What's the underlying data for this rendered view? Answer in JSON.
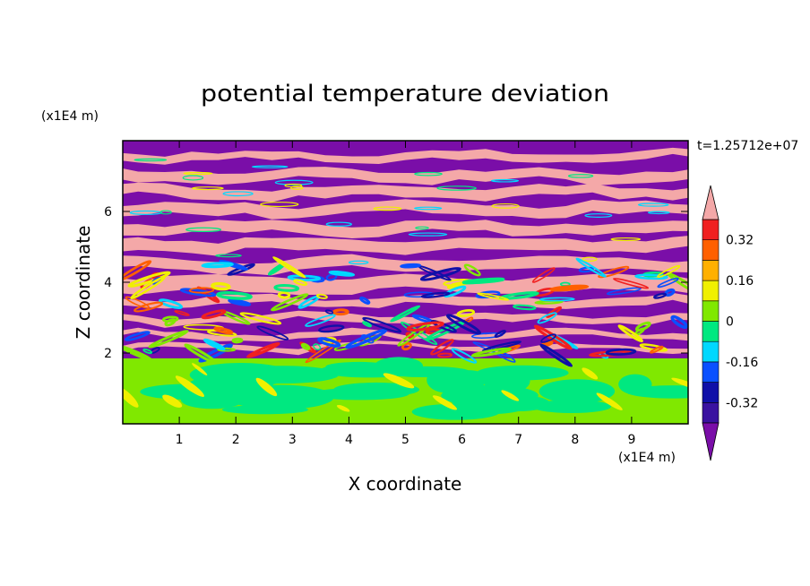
{
  "chart_data": {
    "type": "heatmap",
    "title": "potential temperature deviation",
    "time_label": "t=1.25712e+07",
    "xlabel": "X coordinate",
    "ylabel": "Z coordinate",
    "x_unit": "(x1E4 m)",
    "y_unit": "(x1E4 m)",
    "xlim": [
      0,
      10
    ],
    "ylim": [
      0,
      8
    ],
    "x_ticks": [
      1,
      2,
      3,
      4,
      5,
      6,
      7,
      8,
      9
    ],
    "y_ticks": [
      2,
      4,
      6
    ],
    "colorbar": {
      "levels": [
        -0.4,
        -0.32,
        -0.24,
        -0.16,
        -0.08,
        0,
        0.08,
        0.16,
        0.24,
        0.32,
        0.4
      ],
      "labels": [
        "0.32",
        "0.16",
        "0",
        "-0.16",
        "-0.32"
      ],
      "label_values": [
        0.32,
        0.16,
        0,
        -0.16,
        -0.32
      ],
      "colors": [
        "#7a0ea8",
        "#3a12a0",
        "#1010a8",
        "#0a50ff",
        "#00d8ff",
        "#00e880",
        "#80e800",
        "#f0f000",
        "#ffb000",
        "#ff6000",
        "#f02020",
        "#f4a8a8"
      ]
    },
    "fields": {
      "upper_layer": "alternating horizontal bands of about +0.4 and -0.4 above z ≈ 2",
      "lower_layer": "values near 0 to +0.08 below z ≈ 1.8"
    }
  }
}
